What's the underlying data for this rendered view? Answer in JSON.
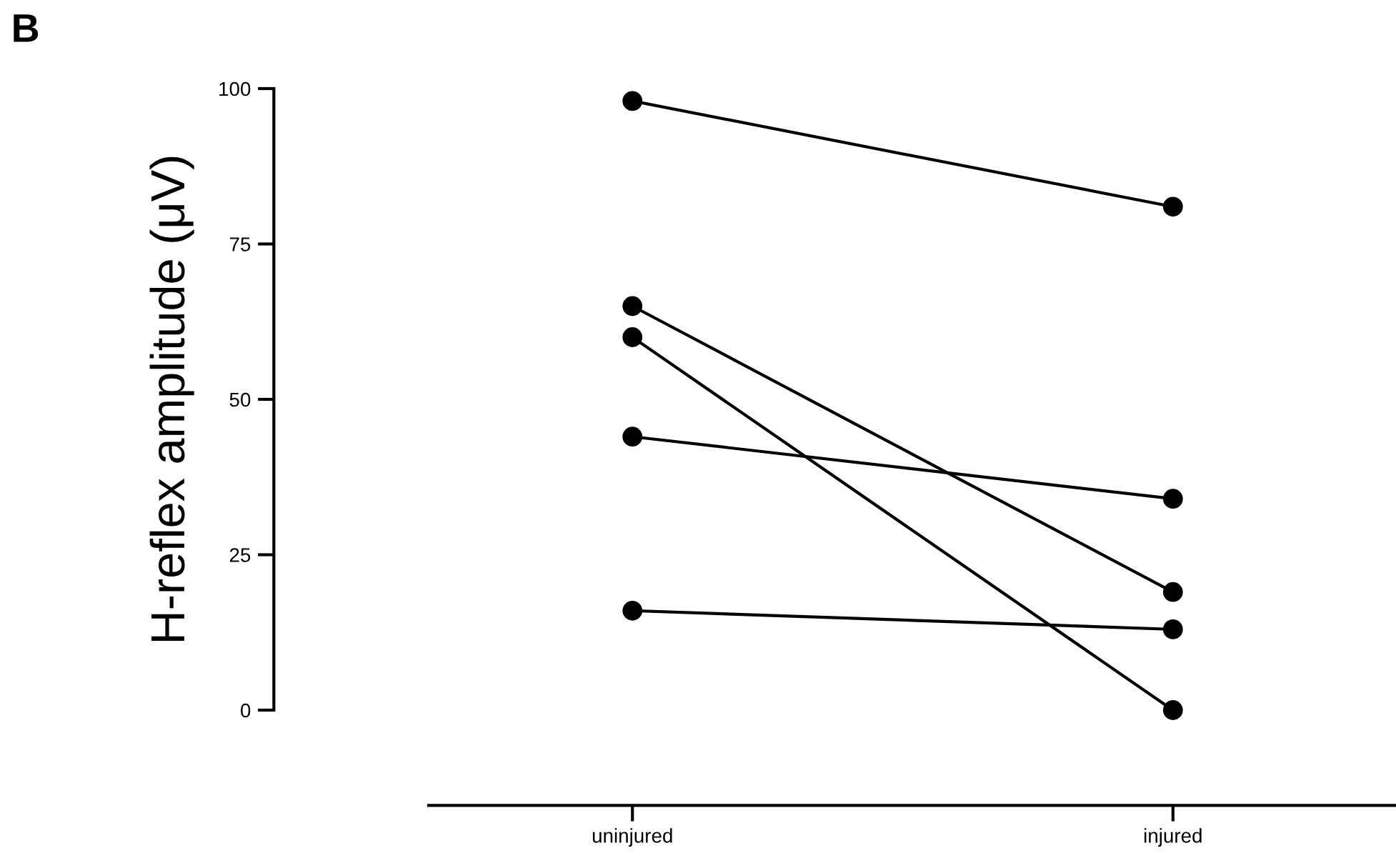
{
  "chart_data": {
    "type": "line",
    "ylabel": "H-reflex amplitude (μV)",
    "annotations": [
      "B"
    ],
    "categories": [
      "uninjured",
      "injured"
    ],
    "series": [
      {
        "color": "#000000",
        "values": [
          98,
          81
        ]
      },
      {
        "color": "#000000",
        "values": [
          65,
          19
        ]
      },
      {
        "color": "#000000",
        "values": [
          60,
          0
        ]
      },
      {
        "color": "#000000",
        "values": [
          44,
          34
        ]
      },
      {
        "color": "#000000",
        "values": [
          16,
          13
        ]
      }
    ],
    "ylim": [
      0,
      100
    ],
    "yticks": [
      0,
      25,
      50,
      75,
      100
    ],
    "grid": false,
    "legend": false,
    "marker": "circle",
    "line_style": "solid"
  }
}
